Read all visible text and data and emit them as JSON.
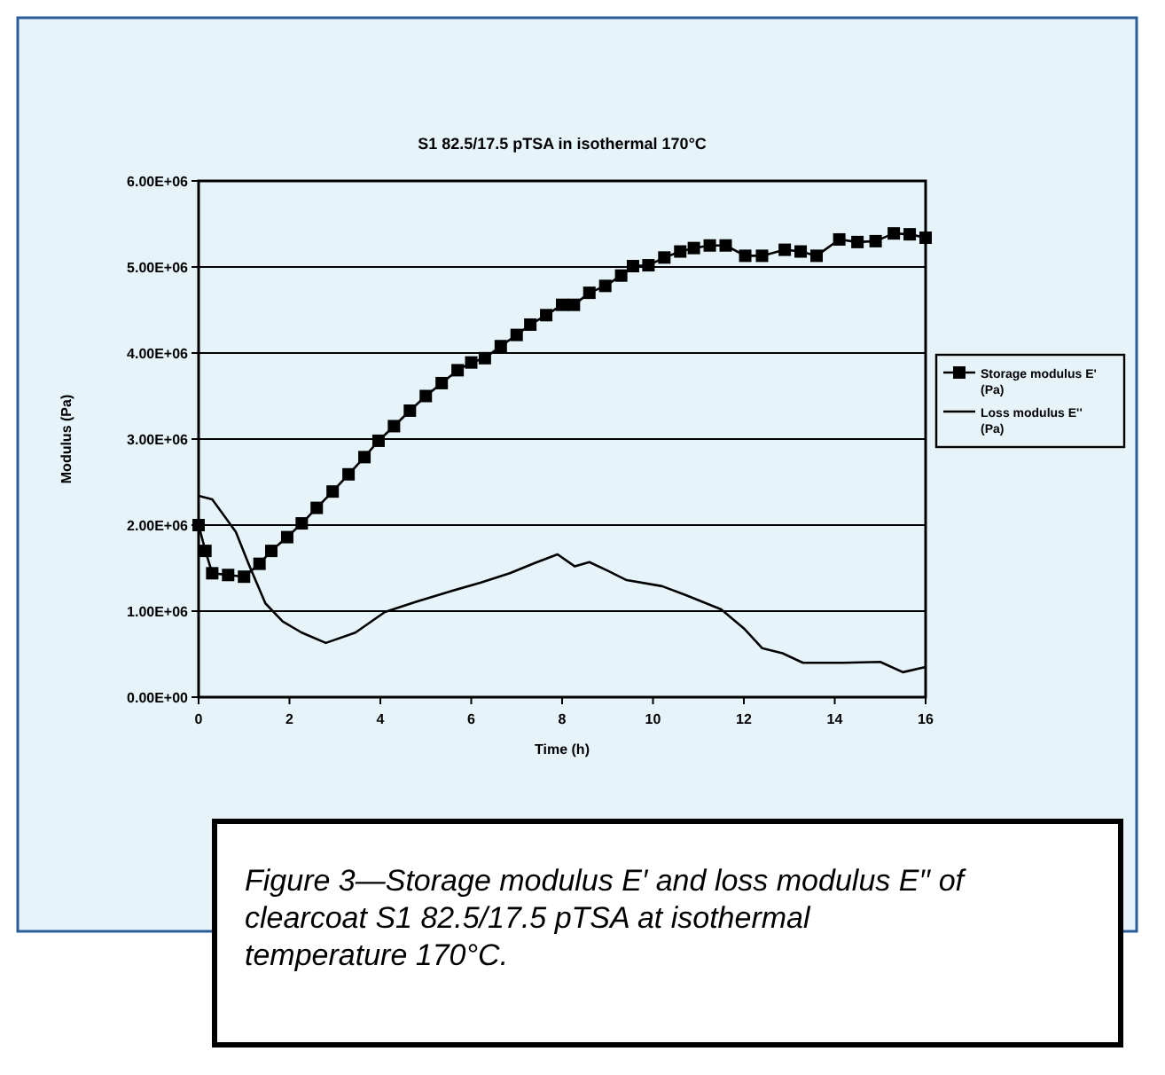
{
  "chart_data": {
    "type": "line",
    "title": "S1 82.5/17.5 pTSA in isothermal 170°C",
    "xlabel": "Time (h)",
    "ylabel": "Modulus (Pa)",
    "xlim": [
      0,
      16
    ],
    "xticks": [
      0,
      2,
      4,
      6,
      8,
      10,
      12,
      14,
      16
    ],
    "ylim": [
      0,
      6000000
    ],
    "yticks": [
      {
        "value": 0,
        "label": "0.00E+00"
      },
      {
        "value": 1000000,
        "label": "1.00E+06"
      },
      {
        "value": 2000000,
        "label": "2.00E+06"
      },
      {
        "value": 3000000,
        "label": "3.00E+06"
      },
      {
        "value": 4000000,
        "label": "4.00E+06"
      },
      {
        "value": 5000000,
        "label": "5.00E+06"
      },
      {
        "value": 6000000,
        "label": "6.00E+06"
      }
    ],
    "grid": "y",
    "legend": "right",
    "line_style": "solid",
    "annotations": [
      "Figure 3—Storage modulus E′ and loss modulus E′′ of clearcoat S1 82.5/17.5 pTSA at isothermal temperature 170°C."
    ],
    "series": [
      {
        "name": "Storage modulus E' (Pa)",
        "color": "#000000",
        "marker": "square",
        "x": [
          0,
          0.15,
          0.3,
          0.65,
          1.0,
          1.34,
          1.6,
          1.95,
          2.27,
          2.6,
          2.95,
          3.3,
          3.65,
          3.96,
          4.3,
          4.65,
          5.0,
          5.35,
          5.7,
          6.0,
          6.3,
          6.65,
          7.0,
          7.3,
          7.65,
          8.0,
          8.26,
          8.6,
          8.95,
          9.3,
          9.56,
          9.9,
          10.25,
          10.6,
          10.9,
          11.25,
          11.6,
          12.03,
          12.4,
          12.9,
          13.25,
          13.6,
          14.1,
          14.5,
          14.9,
          15.3,
          15.65,
          16
        ],
        "values": [
          2000000,
          1700000,
          1440000,
          1420000,
          1400000,
          1550000,
          1700000,
          1860000,
          2020000,
          2200000,
          2390000,
          2590000,
          2790000,
          2980000,
          3150000,
          3330000,
          3500000,
          3650000,
          3800000,
          3890000,
          3940000,
          4080000,
          4210000,
          4330000,
          4440000,
          4560000,
          4560000,
          4700000,
          4780000,
          4900000,
          5010000,
          5020000,
          5110000,
          5180000,
          5220000,
          5250000,
          5250000,
          5130000,
          5130000,
          5200000,
          5180000,
          5130000,
          5320000,
          5290000,
          5300000,
          5390000,
          5380000,
          5340000
        ]
      },
      {
        "name": "Loss modulus E'' (Pa)",
        "color": "#000000",
        "marker": "none",
        "x": [
          0,
          0.3,
          0.82,
          1.1,
          1.47,
          1.85,
          2.27,
          2.8,
          3.45,
          4.1,
          4.8,
          5.54,
          6.2,
          6.85,
          7.4,
          7.9,
          8.28,
          8.6,
          9.0,
          9.42,
          10.2,
          10.7,
          11.5,
          12.0,
          12.4,
          12.85,
          13.3,
          14.2,
          15.0,
          15.5,
          16
        ],
        "values": [
          2340000,
          2300000,
          1920000,
          1550000,
          1090000,
          880000,
          750000,
          630000,
          750000,
          990000,
          1110000,
          1230000,
          1330000,
          1440000,
          1560000,
          1660000,
          1520000,
          1570000,
          1470000,
          1360000,
          1290000,
          1190000,
          1020000,
          800000,
          570000,
          510000,
          400000,
          400000,
          410000,
          290000,
          350000
        ]
      }
    ]
  }
}
